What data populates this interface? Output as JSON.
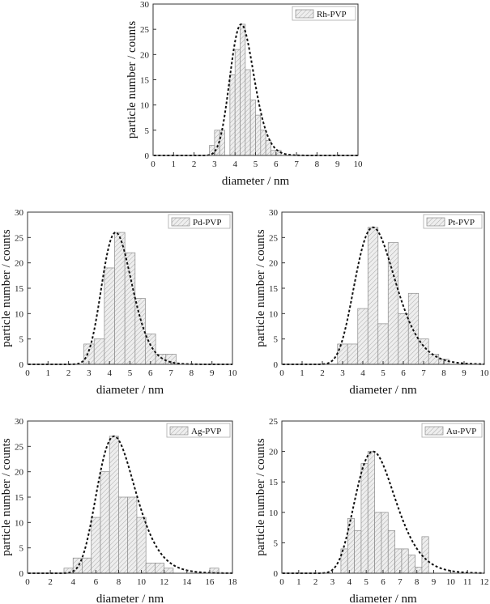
{
  "chart_data": [
    {
      "type": "bar",
      "legend": "Rh-PVP",
      "xlabel": "diameter / nm",
      "ylabel": "particle number / counts",
      "xlim": [
        0,
        10
      ],
      "ylim": [
        0,
        30
      ],
      "xticks": [
        0,
        1,
        2,
        3,
        4,
        5,
        6,
        7,
        8,
        9,
        10
      ],
      "yticks": [
        0,
        5,
        10,
        15,
        20,
        25,
        30
      ],
      "bin_width": 0.25,
      "bin_starts": [
        2.75,
        3.0,
        3.25,
        3.5,
        3.75,
        4.0,
        4.25,
        4.5,
        4.75,
        5.0,
        5.25,
        5.5,
        5.75,
        6.0
      ],
      "values": [
        2,
        5,
        5,
        0,
        16,
        21,
        26,
        17,
        11,
        8,
        5,
        3,
        1,
        1
      ],
      "fit": {
        "type": "lognormal",
        "peak_x": 4.3,
        "peak_y": 26,
        "sigma": 0.135
      }
    },
    {
      "type": "bar",
      "legend": "Pd-PVP",
      "xlabel": "diameter / nm",
      "ylabel": "particle number / counts",
      "xlim": [
        0,
        10
      ],
      "ylim": [
        0,
        30
      ],
      "xticks": [
        0,
        1,
        2,
        3,
        4,
        5,
        6,
        7,
        8,
        9,
        10
      ],
      "yticks": [
        0,
        5,
        10,
        15,
        20,
        25,
        30
      ],
      "bin_width": 0.5,
      "bin_starts": [
        2.75,
        3.25,
        3.75,
        4.25,
        4.75,
        5.25,
        5.75,
        6.25,
        6.75
      ],
      "values": [
        4,
        5,
        19,
        26,
        22,
        13,
        6,
        2,
        2
      ],
      "fit": {
        "type": "lognormal",
        "peak_x": 4.3,
        "peak_y": 26,
        "sigma": 0.17
      }
    },
    {
      "type": "bar",
      "legend": "Pt-PVP",
      "xlabel": "diameter / nm",
      "ylabel": "particle number / counts",
      "xlim": [
        0,
        10
      ],
      "ylim": [
        0,
        30
      ],
      "xticks": [
        0,
        1,
        2,
        3,
        4,
        5,
        6,
        7,
        8,
        9,
        10
      ],
      "yticks": [
        0,
        5,
        10,
        15,
        20,
        25,
        30
      ],
      "bin_width": 0.5,
      "bin_starts": [
        2.75,
        3.25,
        3.75,
        4.25,
        4.75,
        5.25,
        5.75,
        6.25,
        6.75,
        7.25,
        7.75
      ],
      "values": [
        4,
        4,
        11,
        27,
        8,
        24,
        10,
        14,
        5,
        2,
        1
      ],
      "fit": {
        "type": "lognormal",
        "peak_x": 4.5,
        "peak_y": 27,
        "sigma": 0.22
      }
    },
    {
      "type": "bar",
      "legend": "Ag-PVP",
      "xlabel": "diameter / nm",
      "ylabel": "particle number / counts",
      "xlim": [
        0,
        18
      ],
      "ylim": [
        0,
        30
      ],
      "xticks": [
        0,
        2,
        4,
        6,
        8,
        10,
        12,
        14,
        16,
        18
      ],
      "yticks": [
        0,
        5,
        10,
        15,
        20,
        25,
        30
      ],
      "bin_width": 0.8,
      "bin_starts": [
        3.2,
        4.0,
        4.8,
        5.6,
        6.4,
        7.2,
        8.0,
        8.8,
        9.6,
        10.4,
        11.2,
        12.0,
        16.0
      ],
      "values": [
        1,
        3,
        3,
        11,
        20,
        27,
        15,
        15,
        11,
        2,
        2,
        1,
        1
      ],
      "fit": {
        "type": "lognormal",
        "peak_x": 7.6,
        "peak_y": 27,
        "sigma": 0.22
      }
    },
    {
      "type": "bar",
      "legend": "Au-PVP",
      "xlabel": "diameter / nm",
      "ylabel": "particle number / counts",
      "xlim": [
        0,
        12
      ],
      "ylim": [
        0,
        25
      ],
      "xticks": [
        0,
        1,
        2,
        3,
        4,
        5,
        6,
        7,
        8,
        9,
        10,
        11,
        12
      ],
      "yticks": [
        0,
        5,
        10,
        15,
        20,
        25
      ],
      "bin_width": 0.4,
      "bin_starts": [
        3.5,
        3.9,
        4.3,
        4.7,
        5.1,
        5.5,
        5.9,
        6.3,
        6.7,
        7.1,
        7.5,
        7.9,
        8.3,
        8.7
      ],
      "values": [
        4,
        9,
        7,
        18,
        20,
        10,
        10,
        7,
        4,
        4,
        3,
        1,
        6,
        0
      ],
      "fit": {
        "type": "lognormal",
        "peak_x": 5.4,
        "peak_y": 20,
        "sigma": 0.22
      }
    }
  ],
  "colors": {
    "bar_fill": "#eeeeee",
    "bar_stroke": "#8a8a8a",
    "hatch": "#9a9a9a",
    "fit_line": "#111111",
    "axis": "#333333"
  }
}
